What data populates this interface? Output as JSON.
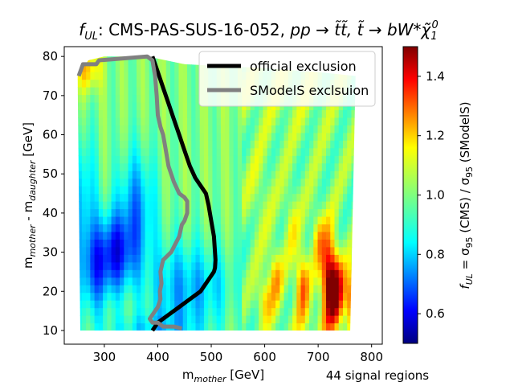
{
  "chart_data": {
    "type": "heatmap",
    "title": "f_UL: CMS-PAS-SUS-16-052, pp → t̃t̃, t̃ → bW*χ̃₁⁰",
    "title_parts": {
      "prefix": "f",
      "prefix_sub": "UL",
      "analysis": ": CMS-PAS-SUS-16-052, ",
      "process": "pp → t̃t̃, t̃ → bW*χ̃",
      "process_sub": "1",
      "process_sup": "0"
    },
    "xlabel": {
      "main": "m",
      "sub": "mother",
      "unit": " [GeV]"
    },
    "ylabel": {
      "main": "m",
      "sub": "mother",
      "mid": " - m",
      "sub2": "daughter",
      "unit": " [GeV]"
    },
    "xlim": [
      225,
      820
    ],
    "ylim": [
      6.5,
      82.5
    ],
    "xticks": [
      300,
      400,
      500,
      600,
      700,
      800
    ],
    "yticks": [
      10,
      20,
      30,
      40,
      50,
      60,
      70,
      80
    ],
    "colorbar": {
      "vmin": 0.5,
      "vmax": 1.5,
      "ticks": [
        "0.6",
        "0.8",
        "1.0",
        "1.2",
        "1.4"
      ],
      "tick_values": [
        0.6,
        0.8,
        1.0,
        1.2,
        1.4
      ],
      "label": "f_UL = σ_95 (CMS) / σ_95 (SModelS)",
      "label_parts": {
        "f": "f",
        "f_sub": "UL",
        "eq": " = σ",
        "sig_sub": "95",
        "mid": " (CMS) / σ",
        "sig_sub2": "95",
        "end": " (SModelS)"
      },
      "colormap": "jet"
    },
    "footnote": "44 signal regions",
    "legend": {
      "position": "top-right",
      "entries": [
        {
          "label": "official exclusion",
          "color": "#000000"
        },
        {
          "label": "SModelS exclsuion",
          "color": "#808080"
        }
      ]
    },
    "series": [
      {
        "name": "official exclusion",
        "color": "#000000",
        "x": [
          390,
          400,
          410,
          420,
          430,
          440,
          450,
          460,
          470,
          480,
          490,
          495,
          500,
          505,
          507,
          508,
          507,
          505,
          480,
          460,
          440,
          420,
          400,
          390
        ],
        "y": [
          80,
          76,
          72,
          68,
          64,
          60,
          56,
          52,
          49,
          47,
          45,
          42,
          38,
          34,
          30,
          28,
          26,
          25,
          20,
          18,
          16,
          14,
          12,
          10
        ]
      },
      {
        "name": "SModelS exclsuion",
        "color": "#808080",
        "x": [
          252,
          260,
          270,
          285,
          290,
          380,
          390,
          395,
          398,
          400,
          405,
          410,
          415,
          420,
          430,
          440,
          450,
          455,
          455,
          450,
          445,
          440,
          425,
          410,
          405,
          407,
          404,
          405,
          400,
          390,
          385,
          390,
          400,
          410,
          430,
          445
        ],
        "y": [
          75,
          78,
          78,
          78,
          79,
          80,
          79,
          75,
          70,
          65,
          62,
          60,
          56,
          52,
          48,
          45,
          44,
          43,
          40,
          38,
          37,
          34,
          30,
          28,
          25,
          22,
          20,
          18,
          16,
          14,
          13,
          12,
          12,
          11,
          11,
          10.5
        ]
      }
    ],
    "heatmap_field": {
      "description": "smooth f_UL field over the region",
      "background_value": 1.0,
      "hotspots": [
        {
          "x": 320,
          "y": 30,
          "sx": 28,
          "sy": 7,
          "v": -0.32
        },
        {
          "x": 280,
          "y": 24,
          "sx": 22,
          "sy": 8,
          "v": -0.2
        },
        {
          "x": 360,
          "y": 42,
          "sx": 25,
          "sy": 10,
          "v": -0.22
        },
        {
          "x": 440,
          "y": 20,
          "sx": 45,
          "sy": 9,
          "v": -0.2
        },
        {
          "x": 260,
          "y": 44,
          "sx": 18,
          "sy": 12,
          "v": -0.18
        },
        {
          "x": 510,
          "y": 22,
          "sx": 30,
          "sy": 7,
          "v": -0.08
        },
        {
          "x": 720,
          "y": 23,
          "sx": 10,
          "sy": 8,
          "v": 0.48
        },
        {
          "x": 735,
          "y": 20,
          "sx": 10,
          "sy": 6,
          "v": 0.38
        },
        {
          "x": 760,
          "y": 18,
          "sx": 7,
          "sy": 5,
          "v": 0.3
        },
        {
          "x": 670,
          "y": 22,
          "sx": 9,
          "sy": 6,
          "v": 0.28
        },
        {
          "x": 620,
          "y": 24,
          "sx": 9,
          "sy": 5,
          "v": 0.2
        },
        {
          "x": 600,
          "y": 18,
          "sx": 10,
          "sy": 4,
          "v": 0.18
        },
        {
          "x": 700,
          "y": 34,
          "sx": 8,
          "sy": 5,
          "v": 0.16
        },
        {
          "x": 650,
          "y": 38,
          "sx": 9,
          "sy": 6,
          "v": 0.1
        },
        {
          "x": 590,
          "y": 45,
          "sx": 15,
          "sy": 8,
          "v": 0.06
        },
        {
          "x": 270,
          "y": 77,
          "sx": 15,
          "sy": 4,
          "v": 0.2
        },
        {
          "x": 640,
          "y": 72,
          "sx": 70,
          "sy": 8,
          "v": 0.05
        },
        {
          "x": 380,
          "y": 10,
          "sx": 60,
          "sy": 3,
          "v": -0.12
        },
        {
          "x": 690,
          "y": 12,
          "sx": 40,
          "sy": 3,
          "v": 0.05
        }
      ]
    }
  }
}
